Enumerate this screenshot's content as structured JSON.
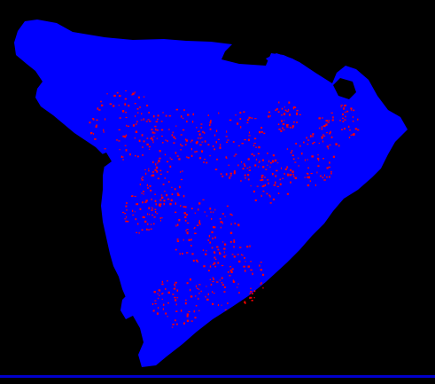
{
  "image": {
    "description_kind": "binary-classification-map",
    "background_color": "#000000",
    "region_color": "#0000ff",
    "highlight_color": "#ff0000"
  },
  "legend": [],
  "labels": []
}
